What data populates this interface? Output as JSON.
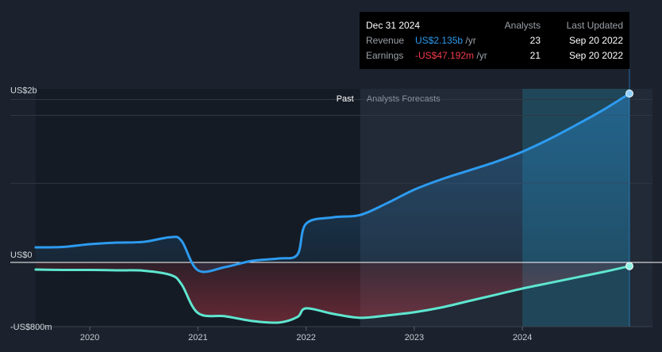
{
  "tooltip": {
    "date": "Dec 31 2024",
    "col_analysts": "Analysts",
    "col_updated": "Last Updated",
    "rows": [
      {
        "label": "Revenue",
        "value": "US$2.135b",
        "unit": "/yr",
        "analysts": "23",
        "updated": "Sep 20 2022"
      },
      {
        "label": "Earnings",
        "value": "-US$47.192m",
        "unit": "/yr",
        "analysts": "21",
        "updated": "Sep 20 2022"
      }
    ]
  },
  "colors": {
    "background": "#1b222d",
    "past_panel": "#151b24",
    "forecast_panel": "#212a36",
    "revenue": "#2d9bf0",
    "earnings": "#5ee6d0",
    "earnings_fill_negative": "#e8414f",
    "tooltip_bg": "#000000"
  },
  "chart_data": {
    "type": "line",
    "ylabel_ticks": [
      "US$2b",
      "US$0",
      "-US$800m"
    ],
    "y_tick_values": [
      2000,
      0,
      -800
    ],
    "ylim": [
      -850,
      2200
    ],
    "xlim": [
      2019.5,
      2025.25
    ],
    "x_tick_labels": [
      "2020",
      "2021",
      "2022",
      "2023",
      "2024"
    ],
    "x_tick_values": [
      2020,
      2021,
      2022,
      2023,
      2024
    ],
    "past_label": "Past",
    "forecast_label": "Analysts Forecasts",
    "past_end": 2022.5,
    "highlight_start": 2024,
    "highlight_end": 2024.99,
    "series": [
      {
        "key": "revenue",
        "x": [
          2019.5,
          2019.75,
          2020.0,
          2020.25,
          2020.5,
          2020.75,
          2020.85,
          2021.0,
          2021.25,
          2021.5,
          2021.75,
          2021.92,
          2022.0,
          2022.25,
          2022.5,
          2022.75,
          2023.0,
          2023.25,
          2023.5,
          2023.75,
          2024.0,
          2024.25,
          2024.5,
          2024.75,
          2024.99
        ],
        "y": [
          190,
          195,
          230,
          250,
          260,
          320,
          270,
          -100,
          -60,
          20,
          50,
          100,
          490,
          570,
          600,
          750,
          920,
          1050,
          1160,
          1270,
          1400,
          1560,
          1740,
          1930,
          2135
        ]
      },
      {
        "key": "earnings",
        "x": [
          2019.5,
          2019.75,
          2020.0,
          2020.25,
          2020.5,
          2020.75,
          2020.85,
          2021.0,
          2021.25,
          2021.5,
          2021.75,
          2021.92,
          2022.0,
          2022.25,
          2022.5,
          2022.75,
          2023.0,
          2023.25,
          2023.5,
          2023.75,
          2024.0,
          2024.25,
          2024.5,
          2024.75,
          2024.99
        ],
        "y": [
          -90,
          -95,
          -95,
          -100,
          -105,
          -160,
          -280,
          -640,
          -680,
          -740,
          -760,
          -690,
          -580,
          -650,
          -700,
          -670,
          -630,
          -570,
          -490,
          -410,
          -330,
          -260,
          -190,
          -120,
          -47
        ]
      }
    ],
    "endpoints": [
      {
        "key": "revenue",
        "x": 2024.99,
        "y": 2135
      },
      {
        "key": "earnings",
        "x": 2024.99,
        "y": -47
      }
    ]
  }
}
